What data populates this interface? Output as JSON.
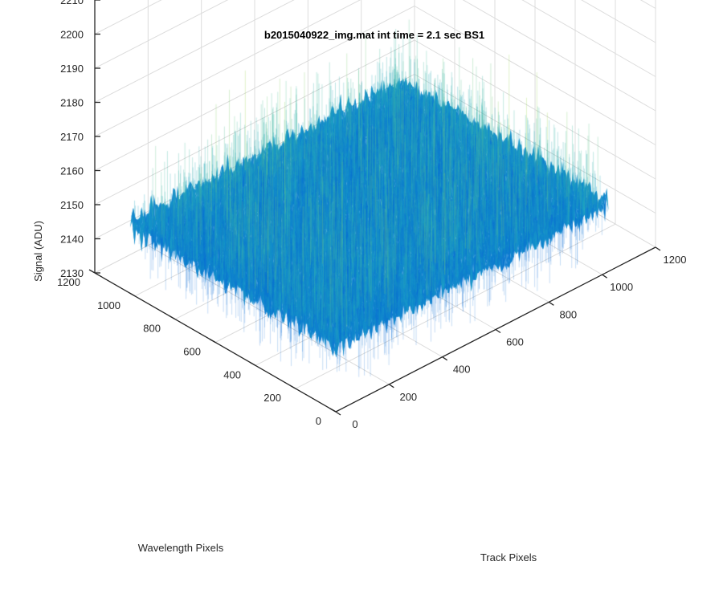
{
  "chart_data": {
    "type": "surface",
    "title": "b2015040922_img.mat int time = 2.1 sec   BS1",
    "xlabel": "Track Pixels",
    "ylabel": "Wavelength Pixels",
    "zlabel": "Signal (ADU)",
    "xlim": [
      0,
      1200
    ],
    "ylim": [
      0,
      1200
    ],
    "zlim": [
      2130,
      2210
    ],
    "x_ticks": [
      "0",
      "200",
      "400",
      "600",
      "800",
      "1000",
      "1200"
    ],
    "y_ticks": [
      "0",
      "200",
      "400",
      "600",
      "800",
      "1000",
      "1200"
    ],
    "z_ticks": [
      "2130",
      "2140",
      "2150",
      "2160",
      "2170",
      "2180",
      "2190",
      "2200",
      "2210"
    ],
    "grid": true,
    "colormap": "parula",
    "data_extent": {
      "x": [
        0,
        1024
      ],
      "y": [
        0,
        1024
      ]
    },
    "signal_mean": 2150,
    "signal_noise_range": [
      2135,
      2195
    ],
    "colors": {
      "low": "#0a6cd6",
      "mid": "#1aa0c6",
      "high": "#4fbf9f",
      "peak": "#9fd65a"
    }
  }
}
